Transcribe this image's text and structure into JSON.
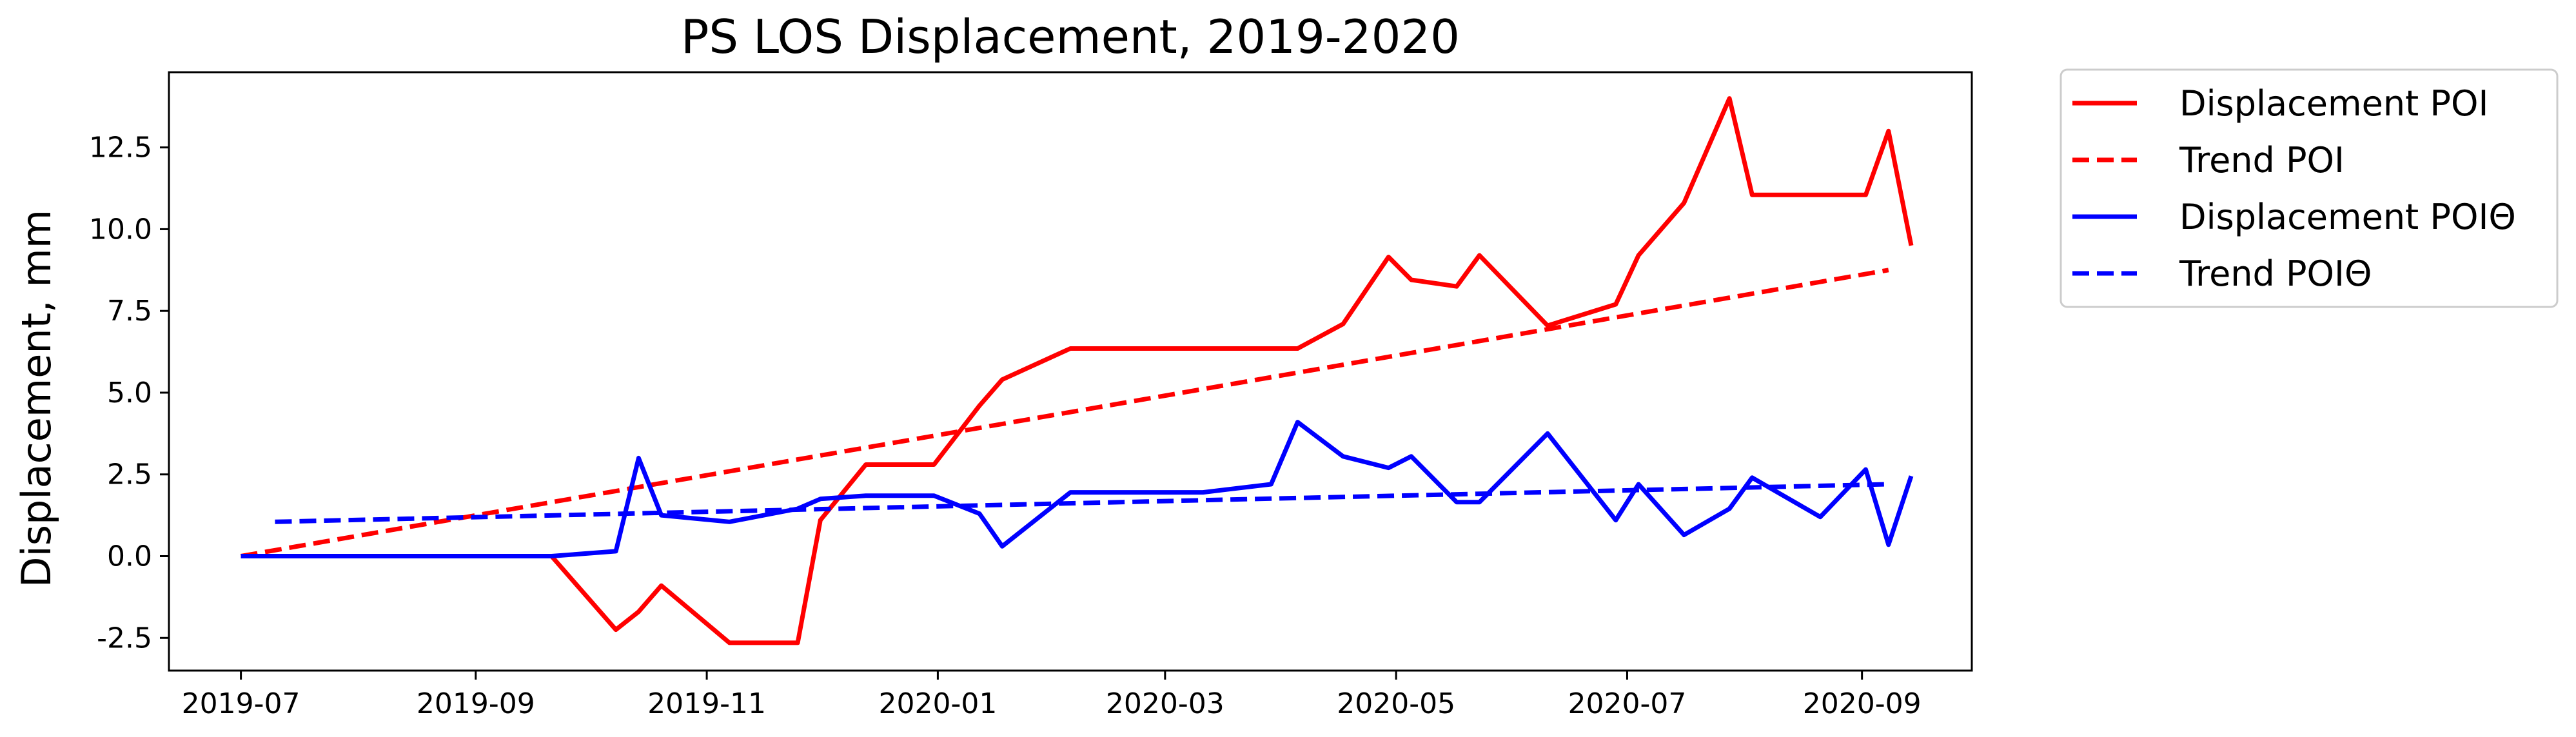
{
  "chart_data": {
    "type": "line",
    "title": "PS LOS Displacement, 2019-2020",
    "xlabel": "",
    "ylabel": "Displacement, mm",
    "xlim": [
      "2019-06-12",
      "2020-09-30"
    ],
    "ylim": [
      -3.5,
      14.8
    ],
    "x_ticks": [
      "2019-07",
      "2019-09",
      "2019-11",
      "2020-01",
      "2020-03",
      "2020-05",
      "2020-07",
      "2020-09"
    ],
    "x_tick_dates": [
      "2019-07-01",
      "2019-09-01",
      "2019-11-01",
      "2020-01-01",
      "2020-03-01",
      "2020-05-01",
      "2020-07-01",
      "2020-09-01"
    ],
    "y_ticks": [
      "-2.5",
      "0.0",
      "2.5",
      "5.0",
      "7.5",
      "10.0",
      "12.5"
    ],
    "y_tick_values": [
      -2.5,
      0.0,
      2.5,
      5.0,
      7.5,
      10.0,
      12.5
    ],
    "grid": false,
    "legend_position": "outside-top-right",
    "series": [
      {
        "name": "Displacement POI",
        "color": "#ff0000",
        "style": "solid",
        "points": [
          {
            "x": "2019-07-01",
            "y": 0.0
          },
          {
            "x": "2019-09-21",
            "y": 0.0
          },
          {
            "x": "2019-10-08",
            "y": -2.25
          },
          {
            "x": "2019-10-14",
            "y": -1.7
          },
          {
            "x": "2019-10-20",
            "y": -0.9
          },
          {
            "x": "2019-11-07",
            "y": -2.65
          },
          {
            "x": "2019-11-25",
            "y": -2.65
          },
          {
            "x": "2019-12-01",
            "y": 1.1
          },
          {
            "x": "2019-12-13",
            "y": 2.8
          },
          {
            "x": "2019-12-31",
            "y": 2.8
          },
          {
            "x": "2020-01-12",
            "y": 4.6
          },
          {
            "x": "2020-01-18",
            "y": 5.4
          },
          {
            "x": "2020-02-05",
            "y": 6.35
          },
          {
            "x": "2020-04-05",
            "y": 6.35
          },
          {
            "x": "2020-04-17",
            "y": 7.1
          },
          {
            "x": "2020-04-29",
            "y": 9.15
          },
          {
            "x": "2020-05-05",
            "y": 8.45
          },
          {
            "x": "2020-05-17",
            "y": 8.25
          },
          {
            "x": "2020-05-23",
            "y": 9.2
          },
          {
            "x": "2020-06-10",
            "y": 7.05
          },
          {
            "x": "2020-06-28",
            "y": 7.7
          },
          {
            "x": "2020-07-04",
            "y": 9.2
          },
          {
            "x": "2020-07-16",
            "y": 10.8
          },
          {
            "x": "2020-07-28",
            "y": 14.0
          },
          {
            "x": "2020-08-03",
            "y": 11.05
          },
          {
            "x": "2020-09-02",
            "y": 11.05
          },
          {
            "x": "2020-09-08",
            "y": 13.0
          },
          {
            "x": "2020-09-14",
            "y": 9.5
          }
        ]
      },
      {
        "name": "Trend POI",
        "color": "#ff0000",
        "style": "dashed",
        "points": [
          {
            "x": "2019-07-01",
            "y": 0.0
          },
          {
            "x": "2020-09-08",
            "y": 8.75
          }
        ]
      },
      {
        "name": "Displacement POIΘ",
        "color": "#0000ff",
        "style": "solid",
        "points": [
          {
            "x": "2019-07-01",
            "y": 0.0
          },
          {
            "x": "2019-09-21",
            "y": 0.0
          },
          {
            "x": "2019-10-08",
            "y": 0.15
          },
          {
            "x": "2019-10-14",
            "y": 3.0
          },
          {
            "x": "2019-10-20",
            "y": 1.25
          },
          {
            "x": "2019-11-07",
            "y": 1.05
          },
          {
            "x": "2019-11-25",
            "y": 1.45
          },
          {
            "x": "2019-12-01",
            "y": 1.75
          },
          {
            "x": "2019-12-13",
            "y": 1.85
          },
          {
            "x": "2019-12-31",
            "y": 1.85
          },
          {
            "x": "2020-01-12",
            "y": 1.3
          },
          {
            "x": "2020-01-18",
            "y": 0.3
          },
          {
            "x": "2020-02-05",
            "y": 1.95
          },
          {
            "x": "2020-03-11",
            "y": 1.95
          },
          {
            "x": "2020-03-29",
            "y": 2.2
          },
          {
            "x": "2020-04-05",
            "y": 4.1
          },
          {
            "x": "2020-04-17",
            "y": 3.05
          },
          {
            "x": "2020-04-29",
            "y": 2.7
          },
          {
            "x": "2020-05-05",
            "y": 3.05
          },
          {
            "x": "2020-05-17",
            "y": 1.65
          },
          {
            "x": "2020-05-23",
            "y": 1.65
          },
          {
            "x": "2020-06-10",
            "y": 3.75
          },
          {
            "x": "2020-06-28",
            "y": 1.1
          },
          {
            "x": "2020-07-04",
            "y": 2.2
          },
          {
            "x": "2020-07-16",
            "y": 0.65
          },
          {
            "x": "2020-07-28",
            "y": 1.45
          },
          {
            "x": "2020-08-03",
            "y": 2.4
          },
          {
            "x": "2020-08-21",
            "y": 1.2
          },
          {
            "x": "2020-09-02",
            "y": 2.65
          },
          {
            "x": "2020-09-08",
            "y": 0.35
          },
          {
            "x": "2020-09-14",
            "y": 2.45
          }
        ]
      },
      {
        "name": "Trend POIΘ",
        "color": "#0000ff",
        "style": "dashed",
        "points": [
          {
            "x": "2019-07-10",
            "y": 1.05
          },
          {
            "x": "2020-09-08",
            "y": 2.2
          }
        ]
      }
    ]
  }
}
